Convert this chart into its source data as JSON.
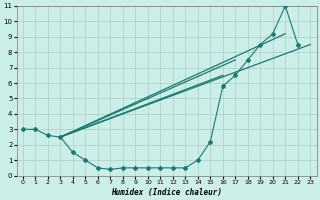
{
  "bg_color": "#cceee8",
  "grid_color": "#aacccc",
  "line_color": "#1a7a6e",
  "xlabel": "Humidex (Indice chaleur)",
  "xlim": [
    -0.5,
    23.5
  ],
  "ylim": [
    0,
    11
  ],
  "yticks": [
    0,
    1,
    2,
    3,
    4,
    5,
    6,
    7,
    8,
    9,
    10,
    11
  ],
  "xticks": [
    0,
    1,
    2,
    3,
    4,
    5,
    6,
    7,
    8,
    9,
    10,
    11,
    12,
    13,
    14,
    15,
    16,
    17,
    18,
    19,
    20,
    21,
    22,
    23
  ],
  "curve_x": [
    0,
    1,
    2,
    3,
    4,
    5,
    6,
    7,
    8,
    9,
    10,
    11,
    12,
    13,
    14,
    15,
    16,
    17,
    18,
    19,
    20,
    21,
    22
  ],
  "curve_y": [
    3.0,
    3.0,
    2.6,
    2.5,
    1.5,
    1.0,
    0.5,
    0.4,
    0.5,
    0.5,
    0.5,
    0.5,
    0.5,
    0.5,
    1.0,
    2.2,
    5.8,
    6.5,
    7.5,
    8.5,
    9.2,
    11.0,
    8.5
  ],
  "straight_lines": [
    {
      "x": [
        3,
        23
      ],
      "y": [
        2.5,
        8.5
      ]
    },
    {
      "x": [
        3,
        21
      ],
      "y": [
        2.5,
        9.2
      ]
    },
    {
      "x": [
        3,
        17
      ],
      "y": [
        2.5,
        7.5
      ]
    },
    {
      "x": [
        3,
        16
      ],
      "y": [
        2.5,
        6.5
      ]
    }
  ]
}
